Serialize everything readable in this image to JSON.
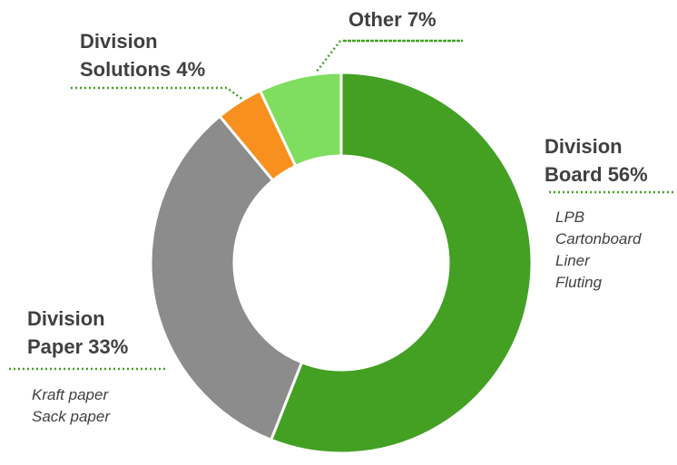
{
  "chart_data": {
    "type": "donut",
    "categories": [
      "Division Board",
      "Division Paper",
      "Division Solutions",
      "Other"
    ],
    "values": [
      56,
      33,
      4,
      7
    ],
    "value_labels": [
      "56%",
      "33%",
      "4%",
      "7%"
    ],
    "colors": [
      "#43a023",
      "#8c8c8c",
      "#f7901e",
      "#7fdd5f"
    ],
    "details": [
      [
        "LPB",
        "Cartonboard",
        "Liner",
        "Fluting"
      ],
      [
        "Kraft paper",
        "Sack paper"
      ],
      [],
      []
    ]
  }
}
